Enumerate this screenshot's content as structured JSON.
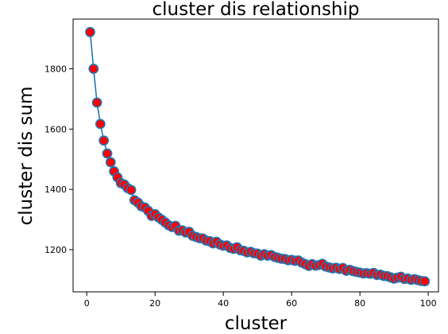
{
  "chart_data": {
    "type": "line",
    "title": "cluster dis relationship",
    "xlabel": "cluster",
    "ylabel": "cluster dis sum",
    "xlim": [
      -4.0,
      103.0
    ],
    "ylim": [
      1060,
      1965
    ],
    "xticks": [
      0,
      20,
      40,
      60,
      80,
      100
    ],
    "yticks": [
      1200,
      1400,
      1600,
      1800
    ],
    "grid": false,
    "legend": null,
    "series": [
      {
        "line_color": "#1f77b4",
        "marker": "circle",
        "marker_face_color": "#ff0000",
        "marker_edge_color": "#1f77b4",
        "x": [
          1,
          2,
          3,
          4,
          5,
          6,
          7,
          8,
          9,
          10,
          11,
          12,
          13,
          14,
          15,
          16,
          17,
          18,
          19,
          20,
          21,
          22,
          23,
          24,
          25,
          26,
          27,
          28,
          29,
          30,
          31,
          32,
          33,
          34,
          35,
          36,
          37,
          38,
          39,
          40,
          41,
          42,
          43,
          44,
          45,
          46,
          47,
          48,
          49,
          50,
          51,
          52,
          53,
          54,
          55,
          56,
          57,
          58,
          59,
          60,
          61,
          62,
          63,
          64,
          65,
          66,
          67,
          68,
          69,
          70,
          71,
          72,
          73,
          74,
          75,
          76,
          77,
          78,
          79,
          80,
          81,
          82,
          83,
          84,
          85,
          86,
          87,
          88,
          89,
          90,
          91,
          92,
          93,
          94,
          95,
          96,
          97,
          98,
          99
        ],
        "y": [
          1922,
          1800,
          1688,
          1617,
          1562,
          1519,
          1490,
          1460,
          1440,
          1421,
          1416,
          1404,
          1398,
          1364,
          1356,
          1344,
          1340,
          1329,
          1312,
          1318,
          1307,
          1299,
          1290,
          1281,
          1275,
          1279,
          1263,
          1264,
          1257,
          1259,
          1246,
          1242,
          1238,
          1237,
          1230,
          1228,
          1221,
          1226,
          1217,
          1213,
          1214,
          1206,
          1203,
          1208,
          1198,
          1196,
          1191,
          1193,
          1188,
          1187,
          1180,
          1185,
          1180,
          1182,
          1176,
          1173,
          1170,
          1169,
          1165,
          1166,
          1163,
          1164,
          1157,
          1152,
          1146,
          1152,
          1147,
          1149,
          1153,
          1144,
          1141,
          1138,
          1140,
          1136,
          1139,
          1130,
          1133,
          1129,
          1126,
          1124,
          1121,
          1122,
          1120,
          1123,
          1116,
          1117,
          1113,
          1112,
          1108,
          1104,
          1107,
          1110,
          1103,
          1104,
          1100,
          1102,
          1099,
          1096,
          1095
        ]
      }
    ]
  }
}
